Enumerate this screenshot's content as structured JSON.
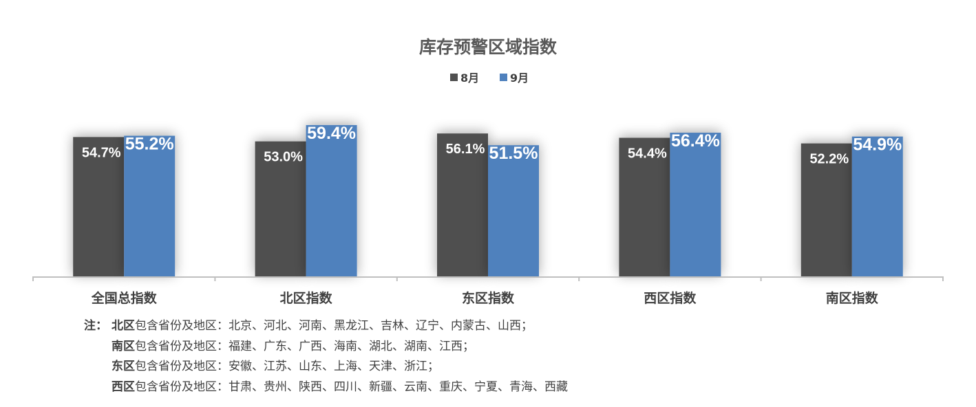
{
  "chart_data": {
    "type": "bar",
    "title": "库存预警区域指数",
    "categories": [
      "全国总指数",
      "北区指数",
      "东区指数",
      "西区指数",
      "南区指数"
    ],
    "series": [
      {
        "name": "8月",
        "values": [
          54.7,
          53.0,
          56.1,
          54.4,
          52.2
        ],
        "labels": [
          "54.7%",
          "53.0%",
          "56.1%",
          "54.4%",
          "52.2%"
        ],
        "color": "#505050"
      },
      {
        "name": "9月",
        "values": [
          55.2,
          59.4,
          51.5,
          56.4,
          54.9
        ],
        "labels": [
          "55.2%",
          "59.4%",
          "51.5%",
          "56.4%",
          "54.9%"
        ],
        "color": "#4f81bd"
      }
    ],
    "grid": false,
    "legend_position": "top-center"
  },
  "notes": {
    "prefix": "注：",
    "rows": [
      {
        "region": "北区",
        "text": "包含省份及地区：北京、河北、河南、黑龙江、吉林、辽宁、内蒙古、山西；"
      },
      {
        "region": "南区",
        "text": "包含省份及地区：福建、广东、广西、海南、湖北、湖南、江西；"
      },
      {
        "region": "东区",
        "text": "包含省份及地区：安徽、江苏、山东、上海、天津、浙江；"
      },
      {
        "region": "西区",
        "text": "包含省份及地区：甘肃、贵州、陕西、四川、新疆、云南、重庆、宁夏、青海、西藏"
      }
    ]
  }
}
